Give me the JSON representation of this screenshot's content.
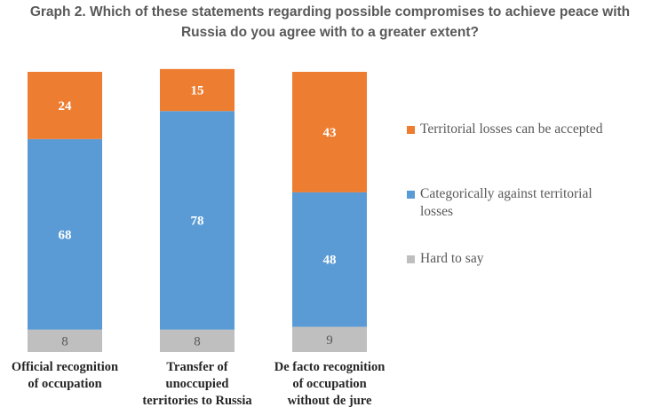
{
  "title_lines": [
    "Graph 2. Which of these statements regarding possible compromises to achieve peace with",
    "Russia do you agree with to a greater extent?"
  ],
  "colors": {
    "orange": "#ED7D31",
    "blue": "#5B9BD5",
    "gray": "#BFBFBF"
  },
  "chart_data": {
    "type": "bar",
    "stacked": true,
    "title": "Graph 2. Which of these statements regarding possible compromises to achieve peace with Russia do you agree with to a greater extent?",
    "categories": [
      [
        "Official recognition",
        "of occupation"
      ],
      [
        "Transfer of",
        "unoccupied",
        "territories to Russia"
      ],
      [
        "De facto recognition",
        "of occupation",
        "without de jure"
      ]
    ],
    "series": [
      {
        "name": "Hard to say",
        "color": "#BFBFBF",
        "values": [
          8,
          8,
          9
        ]
      },
      {
        "name": "Categorically against territorial losses",
        "color": "#5B9BD5",
        "values": [
          68,
          78,
          48
        ]
      },
      {
        "name": "Territorial losses can be accepted",
        "color": "#ED7D31",
        "values": [
          24,
          15,
          43
        ]
      }
    ],
    "ylim": [
      0,
      100
    ],
    "grid": false,
    "legend_position": "right"
  },
  "legend": [
    {
      "label_lines": [
        "Territorial losses can be accepted"
      ],
      "color": "#ED7D31"
    },
    {
      "label_lines": [
        "Categorically against territorial",
        "losses"
      ],
      "color": "#5B9BD5"
    },
    {
      "label_lines": [
        "Hard to say"
      ],
      "color": "#BFBFBF"
    }
  ]
}
